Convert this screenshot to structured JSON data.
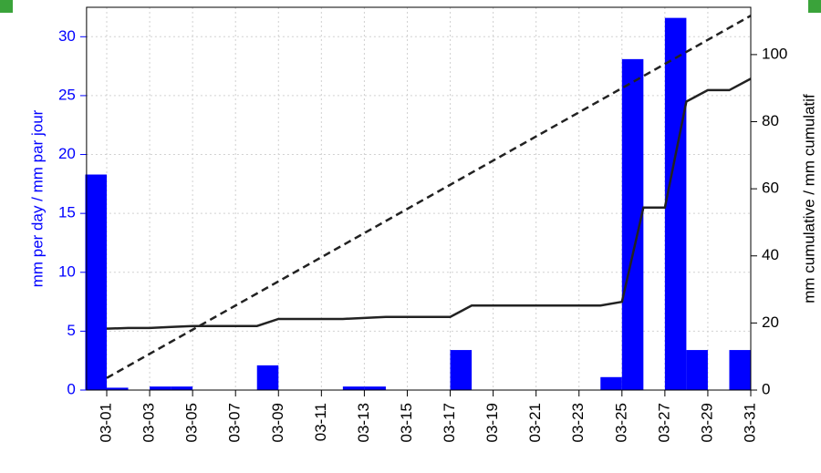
{
  "chart_data": {
    "type": "bar",
    "y_label": "mm per day / mm par jour",
    "y2_label": "mm cumulative / mm cumulatif",
    "categories": [
      "03-01",
      null,
      "03-03",
      null,
      "03-05",
      null,
      "03-07",
      null,
      "03-09",
      null,
      "03-11",
      null,
      "03-13",
      null,
      "03-15",
      null,
      "03-17",
      null,
      "03-19",
      null,
      "03-21",
      null,
      "03-23",
      null,
      "03-25",
      null,
      "03-27",
      null,
      "03-29",
      null,
      "03-31"
    ],
    "ylim": [
      0,
      32.5
    ],
    "yticks": [
      0,
      5,
      10,
      15,
      20,
      25,
      30
    ],
    "y2lim": [
      0,
      114.1
    ],
    "y2ticks": [
      0,
      20,
      40,
      60,
      80,
      100
    ],
    "grid": true,
    "series": [
      {
        "type": "bar",
        "color": "#0000ff",
        "values": [
          18.3,
          0.2,
          0,
          0.3,
          0.3,
          0,
          0,
          0,
          2.1,
          0,
          0,
          0,
          0.3,
          0.3,
          0,
          0,
          0,
          3.4,
          0,
          0,
          0,
          0,
          0,
          0,
          1.1,
          28.1,
          0,
          31.6,
          3.4,
          0,
          3.4
        ]
      },
      {
        "type": "line",
        "axis": "y2",
        "color": "#222222",
        "line_style": "solid",
        "values": [
          18.3,
          18.5,
          18.5,
          18.8,
          19.1,
          19.1,
          19.1,
          19.1,
          21.2,
          21.2,
          21.2,
          21.2,
          21.5,
          21.8,
          21.8,
          21.8,
          21.8,
          25.2,
          25.2,
          25.2,
          25.2,
          25.2,
          25.2,
          25.2,
          26.3,
          54.4,
          54.4,
          86.0,
          89.4,
          89.4,
          92.8
        ]
      },
      {
        "type": "line",
        "axis": "y2",
        "color": "#222222",
        "line_style": "dashed",
        "values": [
          3.6,
          7.2,
          10.8,
          14.4,
          18.0,
          21.6,
          25.2,
          28.8,
          32.4,
          36.0,
          39.6,
          43.2,
          46.8,
          50.4,
          54.0,
          57.6,
          61.2,
          64.8,
          68.4,
          72.0,
          75.6,
          79.2,
          82.8,
          86.4,
          90.0,
          93.6,
          97.2,
          100.8,
          104.4,
          108.0,
          111.6
        ]
      }
    ]
  }
}
